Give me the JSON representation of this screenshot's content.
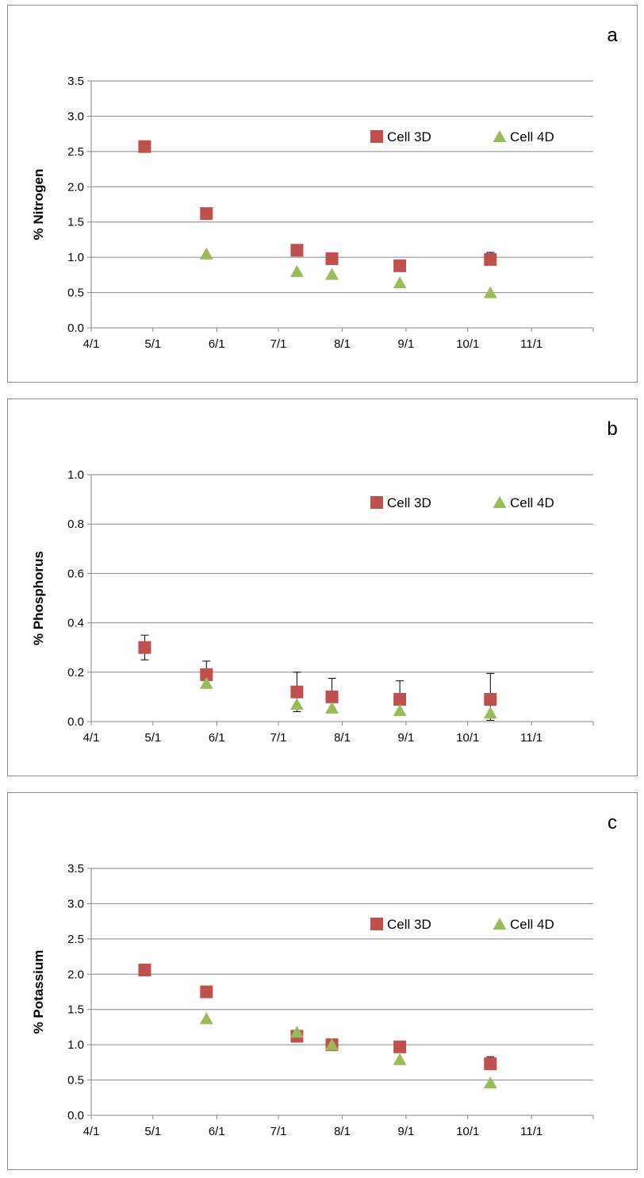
{
  "colors": {
    "cell3d": "#C0504D",
    "cell4d": "#9BBB59",
    "grid": "#868686",
    "axis": "#868686"
  },
  "chart_data": [
    {
      "type": "scatter",
      "panel_letter": "a",
      "ylabel": "% Nitrogen",
      "xlabel": "",
      "ylim": [
        0,
        3.5
      ],
      "yticks": [
        "0.0",
        "0.5",
        "1.0",
        "1.5",
        "2.0",
        "2.5",
        "3.0",
        "3.5"
      ],
      "xlim": [
        "4/1",
        "12/1"
      ],
      "xticks": [
        "4/1",
        "5/1",
        "6/1",
        "7/1",
        "8/1",
        "9/1",
        "10/1",
        "11/1"
      ],
      "grid": true,
      "legend_placement": "top-right",
      "series": [
        {
          "name": "Cell 3D",
          "marker": "square",
          "x": [
            "4/27",
            "5/27",
            "7/10",
            "7/27",
            "8/29",
            "10/12"
          ],
          "y": [
            2.57,
            1.62,
            1.1,
            0.98,
            0.88,
            0.97
          ],
          "err_up": [
            0,
            0,
            0,
            0,
            0,
            0.1
          ]
        },
        {
          "name": "Cell 4D",
          "marker": "triangle",
          "x": [
            "5/27",
            "7/10",
            "7/27",
            "8/29",
            "10/12"
          ],
          "y": [
            1.05,
            0.8,
            0.76,
            0.64,
            0.5
          ],
          "err_up": [
            0,
            0,
            0,
            0,
            0
          ]
        }
      ]
    },
    {
      "type": "scatter",
      "panel_letter": "b",
      "ylabel": "% Phosphorus",
      "xlabel": "",
      "ylim": [
        0,
        1.0
      ],
      "yticks": [
        "0.0",
        "0.2",
        "0.4",
        "0.6",
        "0.8",
        "1.0"
      ],
      "xlim": [
        "4/1",
        "12/1"
      ],
      "xticks": [
        "4/1",
        "5/1",
        "6/1",
        "7/1",
        "8/1",
        "9/1",
        "10/1",
        "11/1"
      ],
      "grid": true,
      "legend_placement": "top-right",
      "series": [
        {
          "name": "Cell 3D",
          "marker": "square",
          "x": [
            "4/27",
            "5/27",
            "7/10",
            "7/27",
            "8/29",
            "10/12"
          ],
          "y": [
            0.3,
            0.19,
            0.12,
            0.1,
            0.09,
            0.09
          ],
          "err_up": [
            0.05,
            0.055,
            0.08,
            0.075,
            0.075,
            0.105
          ],
          "err_down": [
            0.05,
            0,
            0.08,
            0,
            0,
            0.085
          ]
        },
        {
          "name": "Cell 4D",
          "marker": "triangle",
          "x": [
            "5/27",
            "7/10",
            "7/27",
            "8/29",
            "10/12"
          ],
          "y": [
            0.155,
            0.07,
            0.055,
            0.045,
            0.035
          ],
          "err_up": [
            0,
            0,
            0,
            0,
            0
          ]
        }
      ]
    },
    {
      "type": "scatter",
      "panel_letter": "c",
      "ylabel": "% Potassium",
      "xlabel": "",
      "ylim": [
        0,
        3.5
      ],
      "yticks": [
        "0.0",
        "0.5",
        "1.0",
        "1.5",
        "2.0",
        "2.5",
        "3.0",
        "3.5"
      ],
      "xlim": [
        "4/1",
        "12/1"
      ],
      "xticks": [
        "4/1",
        "5/1",
        "6/1",
        "7/1",
        "8/1",
        "9/1",
        "10/1",
        "11/1"
      ],
      "grid": true,
      "legend_placement": "top-right",
      "series": [
        {
          "name": "Cell 3D",
          "marker": "square",
          "x": [
            "4/27",
            "5/27",
            "7/10",
            "7/27",
            "8/29",
            "10/12"
          ],
          "y": [
            2.06,
            1.75,
            1.12,
            1.0,
            0.97,
            0.73
          ],
          "err_up": [
            0,
            0,
            0,
            0,
            0,
            0.1
          ]
        },
        {
          "name": "Cell 4D",
          "marker": "triangle",
          "x": [
            "5/27",
            "7/10",
            "7/27",
            "8/29",
            "10/12"
          ],
          "y": [
            1.37,
            1.18,
            1.0,
            0.79,
            0.46
          ],
          "err_up": [
            0,
            0,
            0,
            0,
            0
          ]
        }
      ]
    }
  ]
}
